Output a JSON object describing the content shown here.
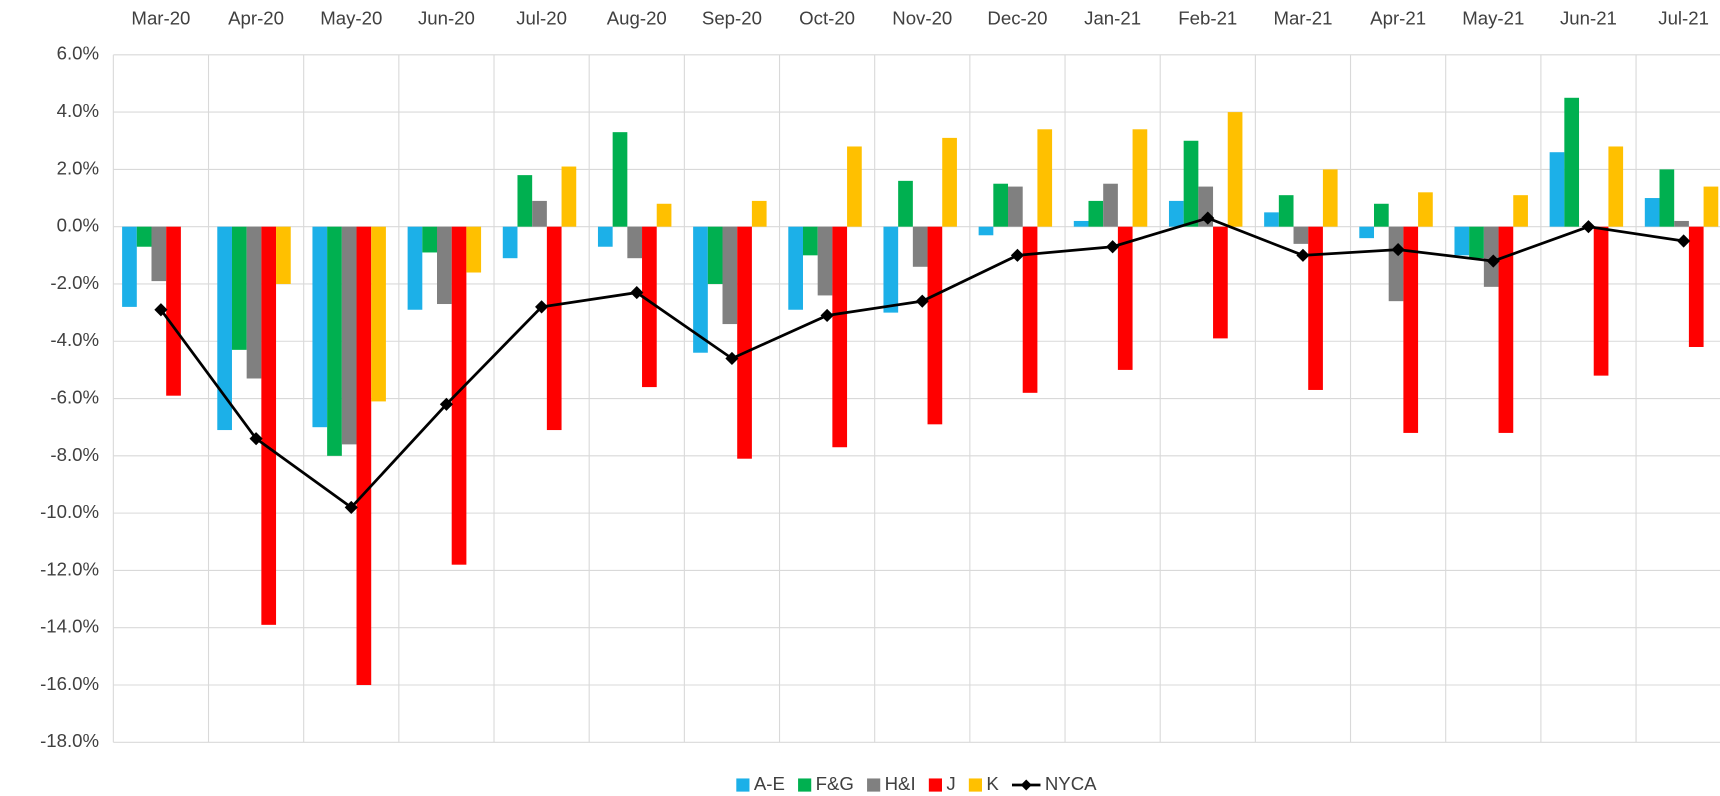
{
  "chart_data": {
    "type": "bar",
    "categories": [
      "Mar-20",
      "Apr-20",
      "May-20",
      "Jun-20",
      "Jul-20",
      "Aug-20",
      "Sep-20",
      "Oct-20",
      "Nov-20",
      "Dec-20",
      "Jan-21",
      "Feb-21",
      "Mar-21",
      "Apr-21",
      "May-21",
      "Jun-21",
      "Jul-21"
    ],
    "series": [
      {
        "name": "A-E",
        "color": "#1cb0e8",
        "type": "bar",
        "values": [
          -2.8,
          -7.1,
          -7.0,
          -2.9,
          -1.1,
          -0.7,
          -4.4,
          -2.9,
          -3.0,
          -0.3,
          0.2,
          0.9,
          0.5,
          -0.4,
          -1.0,
          2.6,
          1.0
        ]
      },
      {
        "name": "F&G",
        "color": "#00b050",
        "type": "bar",
        "values": [
          -0.7,
          -4.3,
          -8.0,
          -0.9,
          1.8,
          3.3,
          -2.0,
          -1.0,
          1.6,
          1.5,
          0.9,
          3.0,
          1.1,
          0.8,
          -1.1,
          4.5,
          2.0
        ]
      },
      {
        "name": "H&I",
        "color": "#808080",
        "type": "bar",
        "values": [
          -1.9,
          -5.3,
          -7.6,
          -2.7,
          0.9,
          -1.1,
          -3.4,
          -2.4,
          -1.4,
          1.4,
          1.5,
          1.4,
          -0.6,
          -2.6,
          -2.1,
          0.0,
          0.2
        ]
      },
      {
        "name": "J",
        "color": "#ff0000",
        "type": "bar",
        "values": [
          -5.9,
          -13.9,
          -16.0,
          -11.8,
          -7.1,
          -5.6,
          -8.1,
          -7.7,
          -6.9,
          -5.8,
          -5.0,
          -3.9,
          -5.7,
          -7.2,
          -7.2,
          -5.2,
          -4.2
        ]
      },
      {
        "name": "K",
        "color": "#ffc000",
        "type": "bar",
        "values": [
          0.0,
          -2.0,
          -6.1,
          -1.6,
          2.1,
          0.8,
          0.9,
          2.8,
          3.1,
          3.4,
          3.4,
          4.0,
          2.0,
          1.2,
          1.1,
          2.8,
          1.4
        ]
      },
      {
        "name": "NYCA",
        "color": "#000000",
        "type": "line",
        "values": [
          -2.9,
          -7.4,
          -9.8,
          -6.2,
          -2.8,
          -2.3,
          -4.6,
          -3.1,
          -2.6,
          -1.0,
          -0.7,
          0.3,
          -1.0,
          -0.8,
          -1.2,
          0.0,
          -0.5
        ]
      }
    ],
    "ylim": [
      -18,
      6
    ],
    "yticks": [
      {
        "value": 6,
        "label": "6.0%"
      },
      {
        "value": 4,
        "label": "4.0%"
      },
      {
        "value": 2,
        "label": "2.0%"
      },
      {
        "value": 0,
        "label": "0.0%"
      },
      {
        "value": -2,
        "label": "-2.0%"
      },
      {
        "value": -4,
        "label": "-4.0%"
      },
      {
        "value": -6,
        "label": "-6.0%"
      },
      {
        "value": -8,
        "label": "-8.0%"
      },
      {
        "value": -10,
        "label": "-10.0%"
      },
      {
        "value": -12,
        "label": "-12.0%"
      },
      {
        "value": -14,
        "label": "-14.0%"
      },
      {
        "value": -16,
        "label": "-16.0%"
      },
      {
        "value": -18,
        "label": "-18.0%"
      }
    ],
    "grid": true,
    "legend": "bottom"
  }
}
